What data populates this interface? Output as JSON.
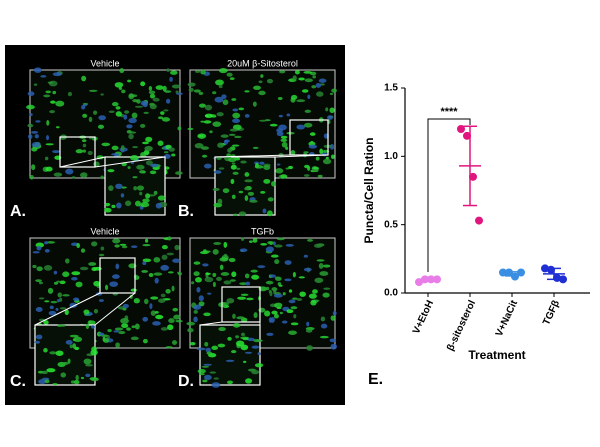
{
  "panels": [
    {
      "label": "A.",
      "title": "Vehicle"
    },
    {
      "label": "B.",
      "title": "20uM β-Sitosterol"
    },
    {
      "label": "C.",
      "title": "Vehicle"
    },
    {
      "label": "D.",
      "title": "TGFb"
    }
  ],
  "chart_data": {
    "type": "scatter",
    "panel_label": "E.",
    "y_label": "Puncta/Cell Ration",
    "x_label": "Treatment",
    "significance": "****",
    "categories": [
      "V+EtoH",
      "β-sitosterol",
      "V+NaCit",
      "TGFβ"
    ],
    "groups": [
      {
        "color": "#e87de8",
        "points": [
          0.08,
          0.1,
          0.1,
          0.1
        ],
        "mean": 0.095,
        "sd": 0.01
      },
      {
        "color": "#e0157d",
        "points": [
          1.2,
          1.15,
          0.85,
          0.53
        ],
        "mean": 0.93,
        "sd": 0.29
      },
      {
        "color": "#3b8fe2",
        "points": [
          0.15,
          0.15,
          0.12,
          0.15
        ],
        "mean": 0.14,
        "sd": 0.015
      },
      {
        "color": "#1f2fd4",
        "points": [
          0.18,
          0.17,
          0.11,
          0.1
        ],
        "mean": 0.14,
        "sd": 0.04
      }
    ],
    "ylim": [
      0,
      1.5
    ],
    "yticks": [
      {
        "value": 0,
        "label": "0.0"
      },
      0.5,
      {
        "value": 1,
        "label": "1.0"
      },
      1.5
    ]
  }
}
